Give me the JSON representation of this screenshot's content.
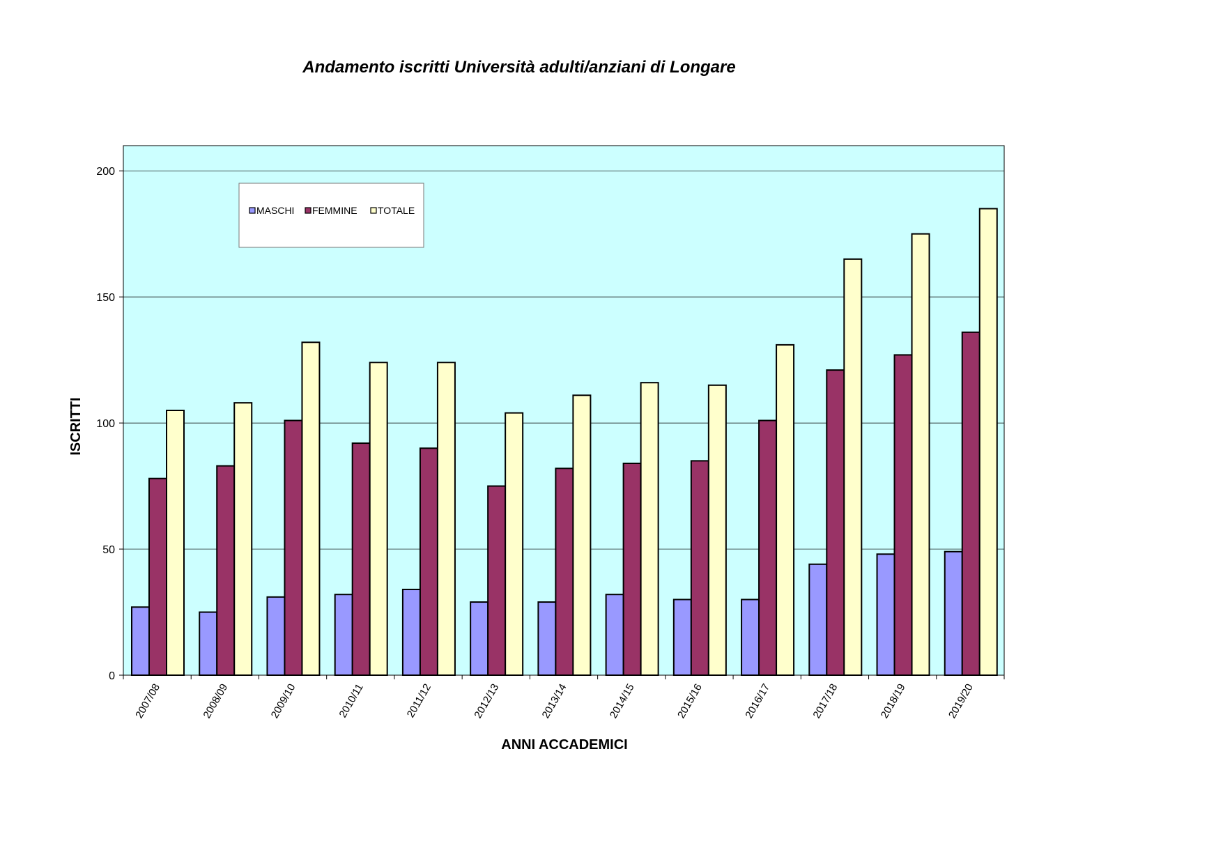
{
  "chart_data": {
    "type": "bar",
    "title": "Andamento iscritti Università adulti/anziani di Longare",
    "xlabel": "ANNI ACCADEMICI",
    "ylabel": "ISCRITTI",
    "ylim": [
      0,
      210
    ],
    "yticks": [
      0,
      50,
      100,
      150,
      200
    ],
    "grid": true,
    "legend_position": "top-left",
    "plot_background": "#CCFFFF",
    "categories": [
      "2007/08",
      "2008/09",
      "2009/10",
      "2010/11",
      "2011/12",
      "2012/13",
      "2013/14",
      "2014/15",
      "2015/16",
      "2016/17",
      "2017/18",
      "2018/19",
      "2019/20"
    ],
    "series": [
      {
        "name": "MASCHI",
        "color": "#9999FF",
        "values": [
          27,
          25,
          31,
          32,
          34,
          29,
          29,
          32,
          30,
          30,
          44,
          48,
          49
        ]
      },
      {
        "name": "FEMMINE",
        "color": "#993366",
        "values": [
          78,
          83,
          101,
          92,
          90,
          75,
          82,
          84,
          85,
          101,
          121,
          127,
          136
        ]
      },
      {
        "name": "TOTALE",
        "color": "#FFFFCC",
        "values": [
          105,
          108,
          132,
          124,
          124,
          104,
          111,
          116,
          115,
          131,
          165,
          175,
          185
        ]
      }
    ]
  }
}
